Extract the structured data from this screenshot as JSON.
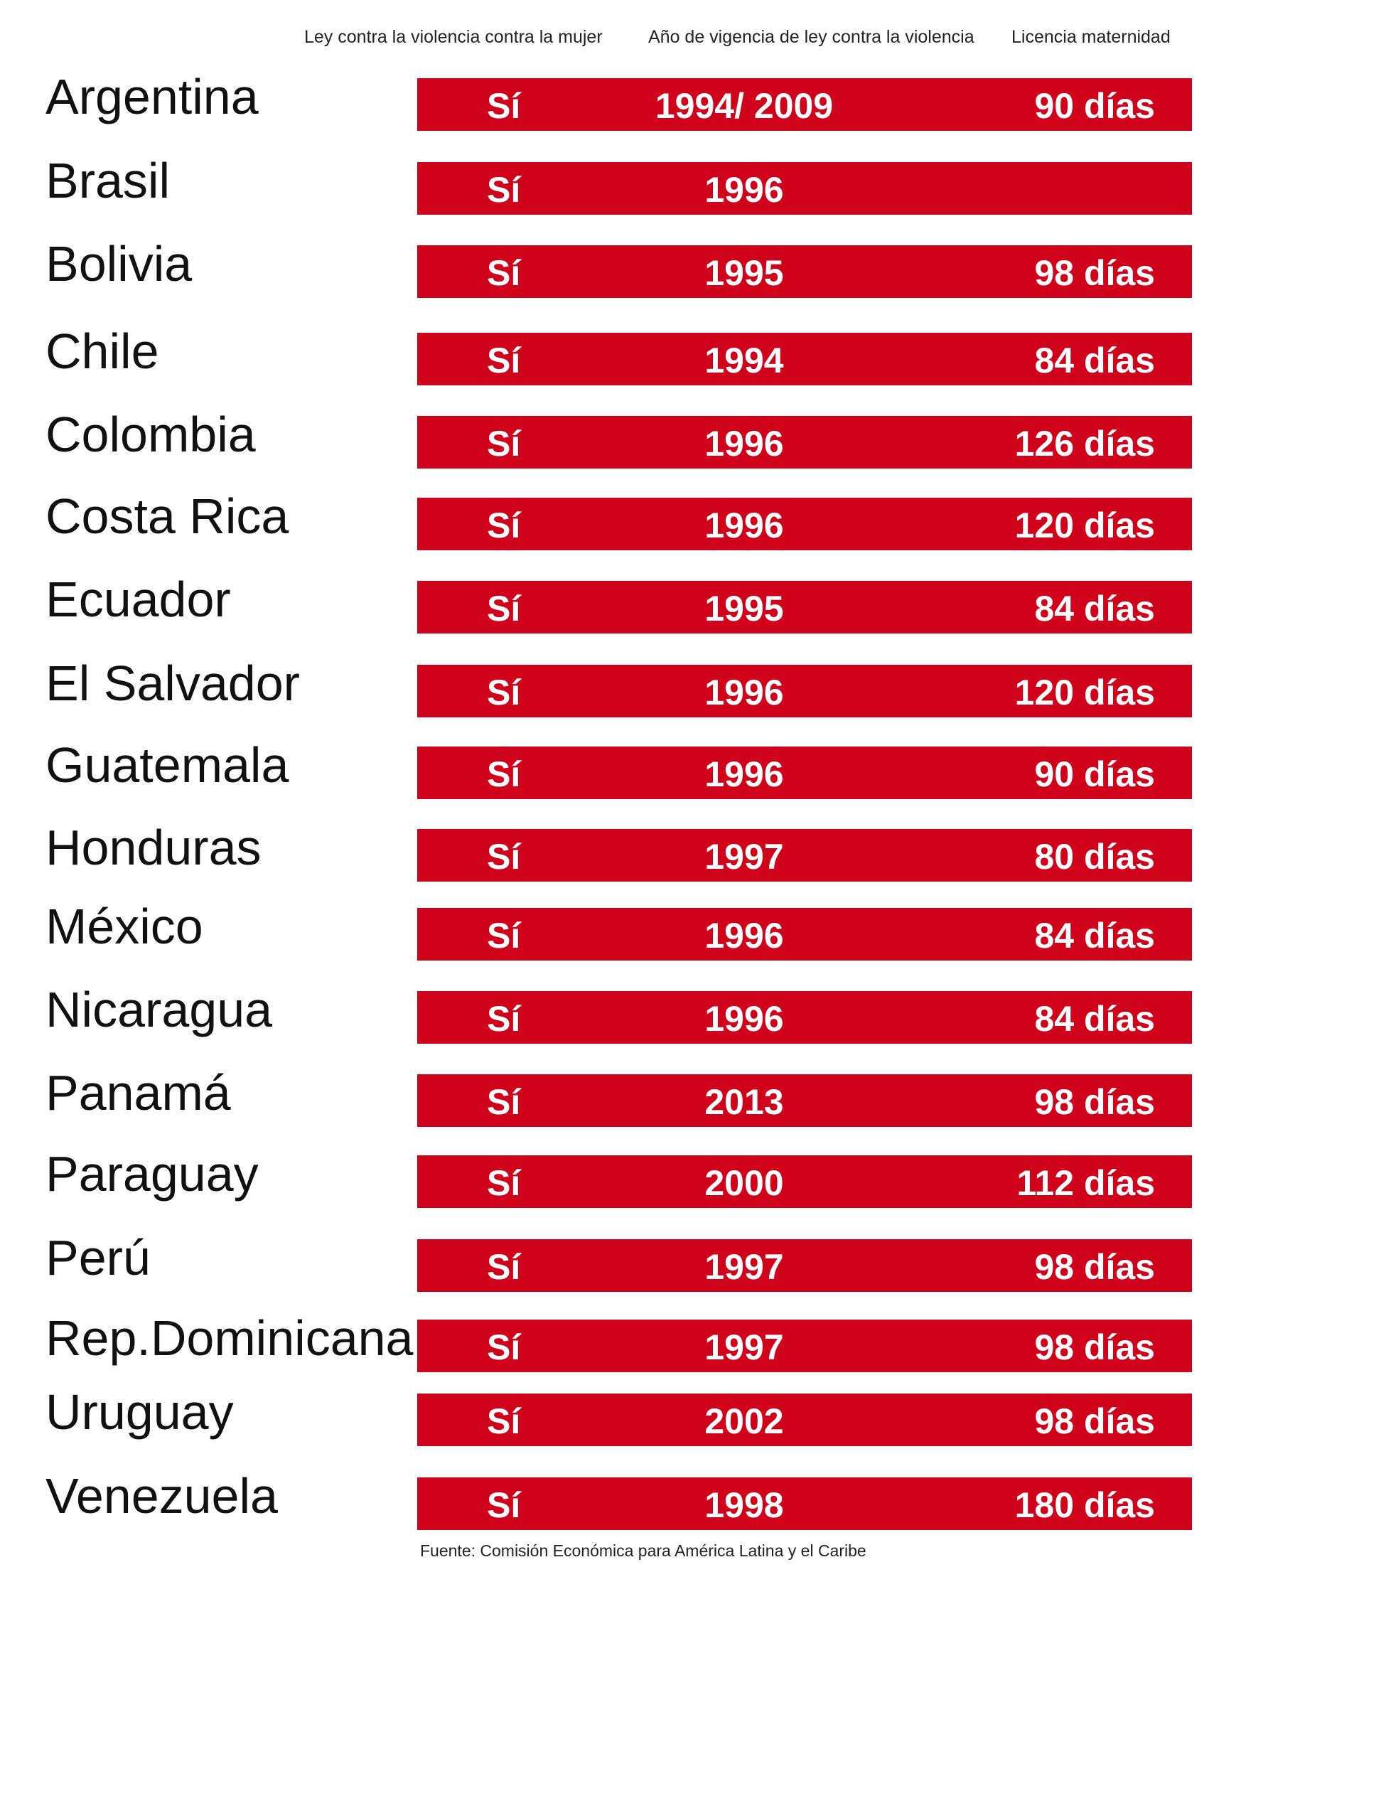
{
  "headers": {
    "law": "Ley contra la violencia contra la mujer",
    "year": "Año de vigencia de ley contra la violencia",
    "leave": "Licencia maternidad"
  },
  "rows": [
    {
      "country": "Argentina",
      "law": "Sí",
      "year": "1994/ 2009",
      "leave": "90 días"
    },
    {
      "country": "Brasil",
      "law": "Sí",
      "year": "1996",
      "leave": ""
    },
    {
      "country": "Bolivia",
      "law": "Sí",
      "year": "1995",
      "leave": "98 días"
    },
    {
      "country": "Chile",
      "law": "Sí",
      "year": "1994",
      "leave": "84 días"
    },
    {
      "country": "Colombia",
      "law": "Sí",
      "year": "1996",
      "leave": "126 días"
    },
    {
      "country": "Costa Rica",
      "law": "Sí",
      "year": "1996",
      "leave": "120 días"
    },
    {
      "country": "Ecuador",
      "law": "Sí",
      "year": "1995",
      "leave": "84 días"
    },
    {
      "country": "El Salvador",
      "law": "Sí",
      "year": "1996",
      "leave": "120 días"
    },
    {
      "country": "Guatemala",
      "law": "Sí",
      "year": "1996",
      "leave": "90 días"
    },
    {
      "country": "Honduras",
      "law": "Sí",
      "year": "1997",
      "leave": "80 días"
    },
    {
      "country": "México",
      "law": "Sí",
      "year": "1996",
      "leave": "84 días"
    },
    {
      "country": "Nicaragua",
      "law": "Sí",
      "year": "1996",
      "leave": "84 días"
    },
    {
      "country": "Panamá",
      "law": "Sí",
      "year": "2013",
      "leave": "98 días"
    },
    {
      "country": "Paraguay",
      "law": "Sí",
      "year": "2000",
      "leave": "112 días"
    },
    {
      "country": "Perú",
      "law": "Sí",
      "year": "1997",
      "leave": "98 días"
    },
    {
      "country": "Rep.Dominicana",
      "law": "Sí",
      "year": "1997",
      "leave": "98 días"
    },
    {
      "country": "Uruguay",
      "law": "Sí",
      "year": "2002",
      "leave": "98 días"
    },
    {
      "country": "Venezuela",
      "law": "Sí",
      "year": "1998",
      "leave": "180 días"
    }
  ],
  "source": "Fuente: Comisión Económica para América Latina y el Caribe",
  "colors": {
    "bar": "#d0021b",
    "bar_text": "#ffffff"
  }
}
